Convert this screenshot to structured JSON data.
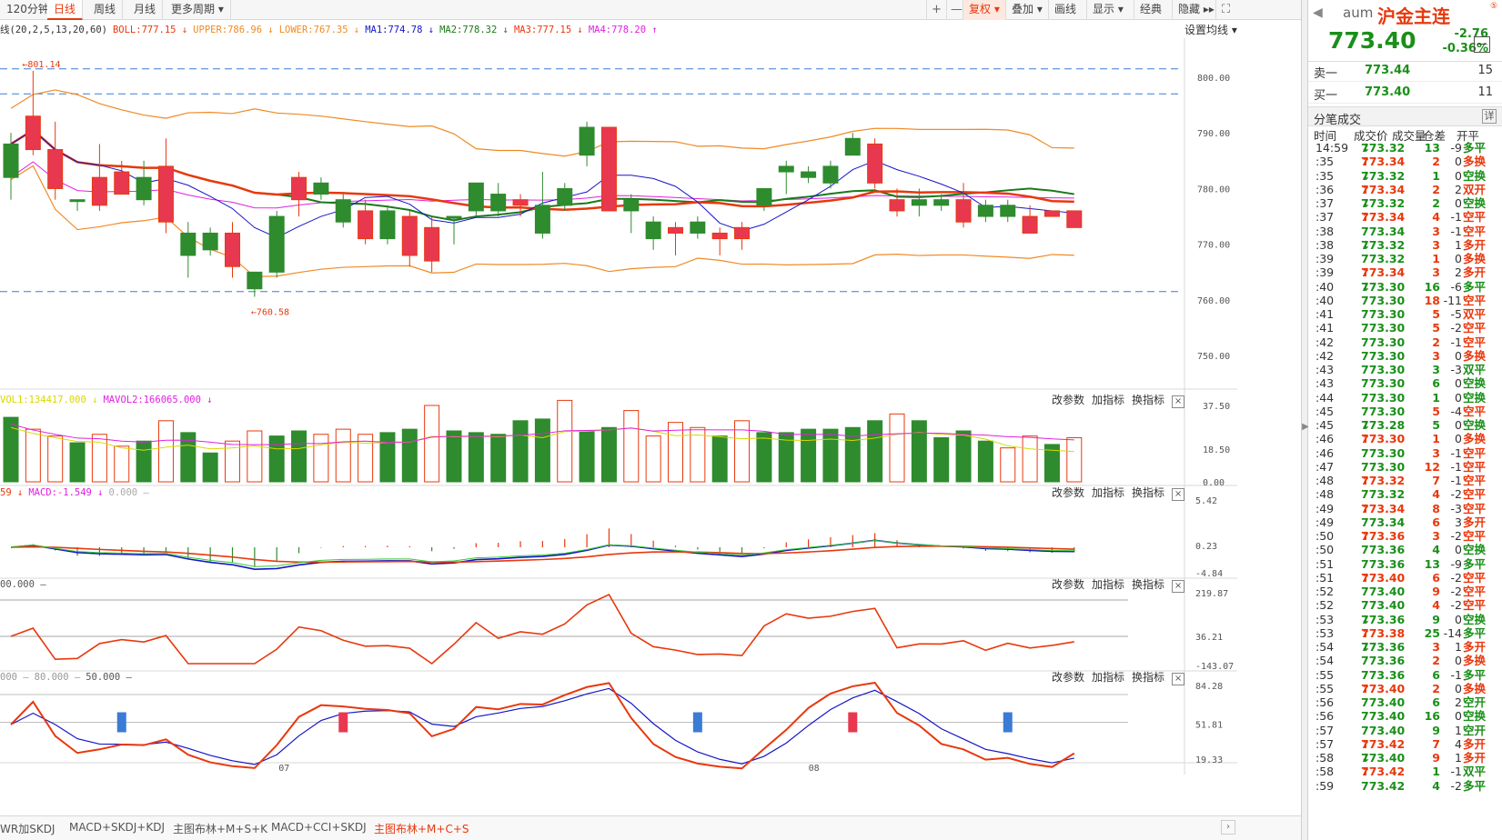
{
  "toolbar": {
    "periods": [
      "120分钟",
      "日线",
      "周线",
      "月线",
      "更多周期 ▾"
    ],
    "active_period": "日线",
    "buttons": [
      "复权 ▾",
      "叠加 ▾",
      "画线",
      "显示 ▾",
      "经典",
      "隐藏 ▸▸"
    ],
    "zoom_in": "+",
    "zoom_out": "—",
    "fullscreen": "⛶"
  },
  "main_indicators": {
    "prefix": "线(20,2,5,13,20,60)",
    "items": [
      {
        "label": "BOLL:777.15",
        "arrow": "↓",
        "color": "#e8380d"
      },
      {
        "label": "UPPER:786.96",
        "arrow": "↓",
        "color": "#f08a24"
      },
      {
        "label": "LOWER:767.35",
        "arrow": "↓",
        "color": "#f08a24"
      },
      {
        "label": "MA1:774.78",
        "arrow": "↓",
        "color": "#1515c8"
      },
      {
        "label": "MA2:778.32",
        "arrow": "↓",
        "color": "#1a7a1a"
      },
      {
        "label": "MA3:777.15",
        "arrow": "↓",
        "color": "#e8380d"
      },
      {
        "label": "MA4:778.20",
        "arrow": "↑",
        "color": "#e020e0"
      }
    ],
    "set_ma": "设置均线 ▾"
  },
  "price_axis": [
    "800.00",
    "790.00",
    "780.00",
    "770.00",
    "760.00",
    "750.00"
  ],
  "price_marks": {
    "high": "801.14",
    "low": "760.58"
  },
  "vol_panel": {
    "labels": [
      {
        "text": "VOL1:134417.000",
        "arrow": "↓",
        "color": "#d8d800"
      },
      {
        "text": "MAVOL2:166065.000",
        "arrow": "↓",
        "color": "#e020e0"
      }
    ],
    "axis": [
      "37.50",
      "18.50",
      "0.00"
    ]
  },
  "macd_panel": {
    "labels": [
      {
        "text": "59",
        "arrow": "↓",
        "color": "#e8380d"
      },
      {
        "text": "MACD:-1.549",
        "arrow": "↓",
        "color": "#e020e0"
      },
      {
        "text": "0.000",
        "arrow": "—",
        "color": "#aaaaaa"
      }
    ],
    "axis": [
      "5.42",
      "0.23",
      "-4.84"
    ]
  },
  "cci_panel": {
    "labels": [
      {
        "text": "00.000",
        "arrow": "—",
        "color": "#555555"
      }
    ],
    "axis": [
      "219.87",
      "36.21",
      "-143.07"
    ]
  },
  "kdj_panel": {
    "labels": [
      {
        "text": "000",
        "arrow": "—",
        "color": "#999999"
      },
      {
        "text": "80.000",
        "arrow": "—",
        "color": "#999999"
      },
      {
        "text": "50.000",
        "arrow": "—",
        "color": "#555555"
      }
    ],
    "axis": [
      "84.28",
      "51.81",
      "19.33"
    ]
  },
  "panel_buttons": [
    "改参数",
    "加指标",
    "换指标"
  ],
  "panel_close": "×",
  "x_axis": [
    "07",
    "08"
  ],
  "bottom_tabs": [
    "WR加SKDJ",
    "MACD+SKDJ+KDJ",
    "主图布林+M+S+K",
    "MACD+CCI+SKDJ",
    "主图布林+M+C+S"
  ],
  "bottom_active": "主图布林+M+C+S",
  "quote": {
    "code": "aum",
    "name": "沪金主连",
    "price": "773.40",
    "change": "-2.76",
    "pct": "-0.36%",
    "sell1": {
      "label": "卖一",
      "price": "773.44",
      "vol": "15"
    },
    "buy1": {
      "label": "买一",
      "price": "773.40",
      "vol": "11"
    }
  },
  "ticks": {
    "title": "分笔成交",
    "detail": "详",
    "columns": [
      "时间",
      "成交价",
      "成交量",
      "仓差",
      "开平"
    ],
    "rows": [
      [
        "14:59",
        "773.32",
        "down",
        "13",
        "-9",
        "多平",
        "dn"
      ],
      [
        ":35",
        "773.34",
        "up",
        "2",
        "0",
        "多换",
        "up"
      ],
      [
        ":35",
        "773.32",
        "down",
        "1",
        "0",
        "空换",
        "dn"
      ],
      [
        ":36",
        "773.34",
        "up",
        "2",
        "2",
        "双开",
        "up"
      ],
      [
        ":37",
        "773.32",
        "down",
        "2",
        "0",
        "空换",
        "dn"
      ],
      [
        ":37",
        "773.34",
        "up",
        "4",
        "-1",
        "空平",
        "up"
      ],
      [
        ":38",
        "773.34",
        "",
        "3",
        "-1",
        "空平",
        "up"
      ],
      [
        ":38",
        "773.32",
        "down",
        "3",
        "1",
        "多开",
        "up"
      ],
      [
        ":39",
        "773.32",
        "",
        "1",
        "0",
        "多换",
        "up"
      ],
      [
        ":39",
        "773.34",
        "up",
        "3",
        "2",
        "多开",
        "up"
      ],
      [
        ":40",
        "773.30",
        "down",
        "16",
        "-6",
        "多平",
        "dn"
      ],
      [
        ":40",
        "773.30",
        "",
        "18",
        "-11",
        "空平",
        "up"
      ],
      [
        ":41",
        "773.30",
        "",
        "5",
        "-5",
        "双平",
        "up"
      ],
      [
        ":41",
        "773.30",
        "",
        "5",
        "-2",
        "空平",
        "up"
      ],
      [
        ":42",
        "773.30",
        "",
        "2",
        "-1",
        "空平",
        "up"
      ],
      [
        ":42",
        "773.30",
        "",
        "3",
        "0",
        "多换",
        "up"
      ],
      [
        ":43",
        "773.30",
        "",
        "3",
        "-3",
        "双平",
        "dn"
      ],
      [
        ":43",
        "773.30",
        "",
        "6",
        "0",
        "空换",
        "dn"
      ],
      [
        ":44",
        "773.30",
        "",
        "1",
        "0",
        "空换",
        "dn"
      ],
      [
        ":45",
        "773.30",
        "",
        "5",
        "-4",
        "空平",
        "up"
      ],
      [
        ":45",
        "773.28",
        "down",
        "5",
        "0",
        "空换",
        "dn"
      ],
      [
        ":46",
        "773.30",
        "up",
        "1",
        "0",
        "多换",
        "up"
      ],
      [
        ":46",
        "773.30",
        "",
        "3",
        "-1",
        "空平",
        "up"
      ],
      [
        ":47",
        "773.30",
        "",
        "12",
        "-1",
        "空平",
        "up"
      ],
      [
        ":48",
        "773.32",
        "up",
        "7",
        "-1",
        "空平",
        "up"
      ],
      [
        ":48",
        "773.32",
        "",
        "4",
        "-2",
        "空平",
        "up"
      ],
      [
        ":49",
        "773.34",
        "up",
        "8",
        "-3",
        "空平",
        "up"
      ],
      [
        ":49",
        "773.34",
        "",
        "6",
        "3",
        "多开",
        "up"
      ],
      [
        ":50",
        "773.36",
        "up",
        "3",
        "-2",
        "空平",
        "up"
      ],
      [
        ":50",
        "773.36",
        "",
        "4",
        "0",
        "空换",
        "dn"
      ],
      [
        ":51",
        "773.36",
        "",
        "13",
        "-9",
        "多平",
        "dn"
      ],
      [
        ":51",
        "773.40",
        "up",
        "6",
        "-2",
        "空平",
        "up"
      ],
      [
        ":52",
        "773.40",
        "",
        "9",
        "-2",
        "空平",
        "up"
      ],
      [
        ":52",
        "773.40",
        "",
        "4",
        "-2",
        "空平",
        "up"
      ],
      [
        ":53",
        "773.36",
        "down",
        "9",
        "0",
        "空换",
        "dn"
      ],
      [
        ":53",
        "773.38",
        "up",
        "25",
        "-14",
        "多平",
        "dn"
      ],
      [
        ":54",
        "773.36",
        "down",
        "3",
        "1",
        "多开",
        "up"
      ],
      [
        ":54",
        "773.36",
        "",
        "2",
        "0",
        "多换",
        "up"
      ],
      [
        ":55",
        "773.36",
        "",
        "6",
        "-1",
        "多平",
        "dn"
      ],
      [
        ":55",
        "773.40",
        "up",
        "2",
        "0",
        "多换",
        "up"
      ],
      [
        ":56",
        "773.40",
        "",
        "6",
        "2",
        "空开",
        "dn"
      ],
      [
        ":56",
        "773.40",
        "",
        "16",
        "0",
        "空换",
        "dn"
      ],
      [
        ":57",
        "773.40",
        "",
        "9",
        "1",
        "空开",
        "dn"
      ],
      [
        ":57",
        "773.42",
        "up",
        "7",
        "4",
        "多开",
        "up"
      ],
      [
        ":58",
        "773.40",
        "down",
        "9",
        "1",
        "多开",
        "up"
      ],
      [
        ":58",
        "773.42",
        "up",
        "1",
        "-1",
        "双平",
        "dn"
      ],
      [
        ":59",
        "773.42",
        "",
        "4",
        "-2",
        "多平",
        "dn"
      ]
    ]
  },
  "chart_data": {
    "type": "candlestick",
    "candles": [
      [
        782,
        788,
        778,
        790,
        "d"
      ],
      [
        787,
        793,
        786,
        801.14,
        "u"
      ],
      [
        787,
        780,
        778,
        792,
        "u"
      ],
      [
        778,
        778,
        776,
        778,
        "d"
      ],
      [
        777,
        782,
        776,
        788,
        "u"
      ],
      [
        779,
        783,
        779,
        785,
        "u"
      ],
      [
        778,
        782,
        777,
        785,
        "d"
      ],
      [
        774,
        784,
        772,
        789,
        "u"
      ],
      [
        768,
        772,
        764,
        774,
        "d"
      ],
      [
        769,
        772,
        768,
        773,
        "d"
      ],
      [
        766,
        772,
        764,
        774,
        "u"
      ],
      [
        762,
        765,
        760.58,
        765,
        "d"
      ],
      [
        765,
        775,
        764,
        776,
        "d"
      ],
      [
        778,
        782,
        775,
        783,
        "u"
      ],
      [
        779,
        781,
        778,
        782,
        "d"
      ],
      [
        774,
        778,
        773,
        779,
        "d"
      ],
      [
        771,
        776,
        770,
        778,
        "u"
      ],
      [
        771,
        776,
        770,
        777,
        "d"
      ],
      [
        768,
        775,
        766,
        776,
        "u"
      ],
      [
        773,
        767,
        765,
        775,
        "u"
      ],
      [
        775,
        775,
        770,
        775,
        "d"
      ],
      [
        776,
        781,
        775,
        781,
        "d"
      ],
      [
        779,
        776,
        775,
        781,
        "d"
      ],
      [
        777,
        778,
        775,
        779,
        "u"
      ],
      [
        772,
        777,
        771,
        783,
        "d"
      ],
      [
        777,
        780,
        776,
        781,
        "d"
      ],
      [
        791,
        786,
        784,
        792,
        "d"
      ],
      [
        776,
        791,
        776,
        791,
        "u"
      ],
      [
        776,
        778,
        772,
        779,
        "d"
      ],
      [
        771,
        774,
        769,
        775,
        "d"
      ],
      [
        772,
        773,
        768,
        774,
        "u"
      ],
      [
        774,
        772,
        771,
        775,
        "d"
      ],
      [
        771,
        772,
        768,
        773,
        "u"
      ],
      [
        773,
        771,
        769,
        774,
        "u"
      ],
      [
        777,
        780,
        776,
        780,
        "d"
      ],
      [
        783,
        784,
        779,
        785,
        "d"
      ],
      [
        782,
        783,
        781,
        784,
        "d"
      ],
      [
        781,
        784,
        780,
        785,
        "d"
      ],
      [
        789,
        786,
        786,
        790,
        "d"
      ],
      [
        781,
        788,
        780,
        789,
        "u"
      ],
      [
        778,
        776,
        775,
        780,
        "u"
      ],
      [
        778,
        777,
        775,
        780,
        "d"
      ],
      [
        778,
        777,
        776,
        779,
        "d"
      ],
      [
        774,
        778,
        773,
        781,
        "u"
      ],
      [
        777,
        775,
        774,
        778,
        "d"
      ],
      [
        775,
        777,
        774,
        778,
        "d"
      ],
      [
        772,
        775,
        772,
        777,
        "u"
      ],
      [
        776,
        775,
        775,
        776,
        "u"
      ],
      [
        773,
        776,
        773,
        776,
        "u"
      ]
    ],
    "volume": [
      [
        38,
        "d"
      ],
      [
        31,
        "u"
      ],
      [
        27,
        "u"
      ],
      [
        23,
        "d"
      ],
      [
        28,
        "u"
      ],
      [
        21,
        "u"
      ],
      [
        24,
        "d"
      ],
      [
        36,
        "u"
      ],
      [
        29,
        "d"
      ],
      [
        17,
        "d"
      ],
      [
        24,
        "u"
      ],
      [
        30,
        "u"
      ],
      [
        27,
        "d"
      ],
      [
        30,
        "d"
      ],
      [
        28,
        "u"
      ],
      [
        31,
        "u"
      ],
      [
        28,
        "u"
      ],
      [
        29,
        "d"
      ],
      [
        31,
        "d"
      ],
      [
        45,
        "u"
      ],
      [
        30,
        "d"
      ],
      [
        29,
        "d"
      ],
      [
        28,
        "d"
      ],
      [
        36,
        "d"
      ],
      [
        37,
        "d"
      ],
      [
        48,
        "u"
      ],
      [
        30,
        "d"
      ],
      [
        32,
        "d"
      ],
      [
        42,
        "u"
      ],
      [
        27,
        "u"
      ],
      [
        35,
        "u"
      ],
      [
        32,
        "u"
      ],
      [
        27,
        "d"
      ],
      [
        36,
        "u"
      ],
      [
        29,
        "d"
      ],
      [
        29,
        "d"
      ],
      [
        31,
        "d"
      ],
      [
        31,
        "d"
      ],
      [
        32,
        "d"
      ],
      [
        36,
        "d"
      ],
      [
        40,
        "u"
      ],
      [
        36,
        "d"
      ],
      [
        26,
        "d"
      ],
      [
        30,
        "d"
      ],
      [
        24,
        "d"
      ],
      [
        20,
        "u"
      ],
      [
        27,
        "u"
      ],
      [
        22,
        "d"
      ],
      [
        26,
        "u"
      ]
    ],
    "ylim_price": [
      744,
      807
    ],
    "ylim_vol": [
      0,
      45
    ]
  }
}
